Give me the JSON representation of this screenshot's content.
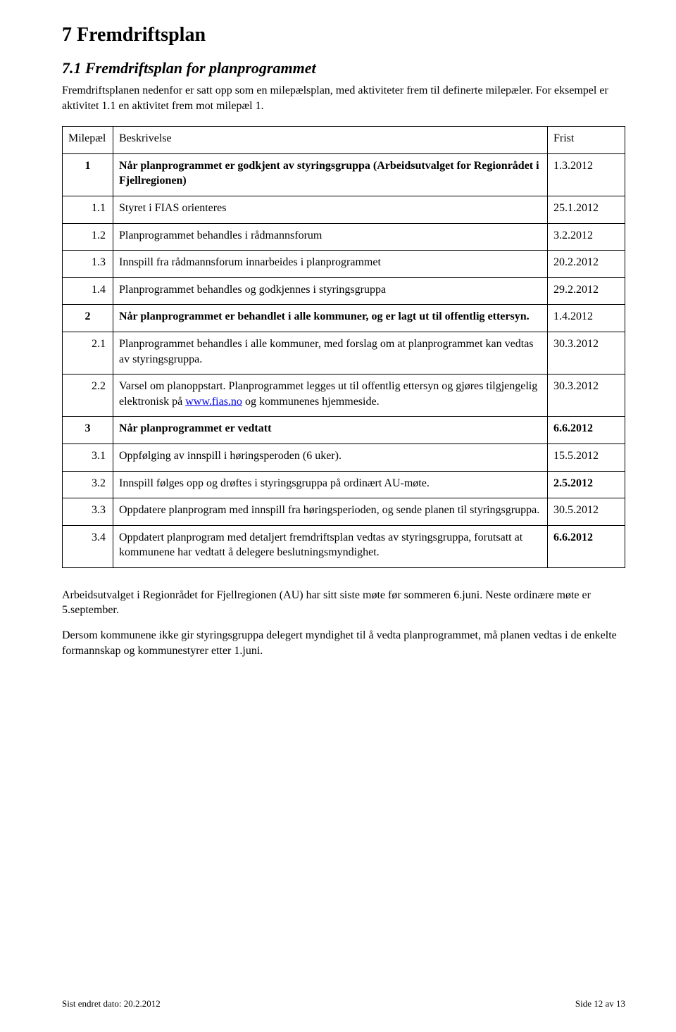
{
  "heading1": "7 Fremdriftsplan",
  "heading2": "7.1 Fremdriftsplan for planprogrammet",
  "intro": "Fremdriftsplanen nedenfor er satt opp som en milepælsplan, med aktiviteter frem til definerte milepæler. For eksempel er aktivitet 1.1 en aktivitet frem mot milepæl 1.",
  "table": {
    "head": {
      "c1": "Milepæl",
      "c2": "Beskrivelse",
      "c3": "Frist"
    },
    "rows": [
      {
        "id": "1",
        "idAlign": "center",
        "text": "Når planprogrammet er godkjent av styringsgruppa (Arbeidsutvalget for Regionrådet i Fjellregionen)",
        "bold": true,
        "date": "1.3.2012"
      },
      {
        "id": "1.1",
        "idAlign": "right",
        "text": "Styret i FIAS orienteres",
        "date": "25.1.2012"
      },
      {
        "id": "1.2",
        "idAlign": "right",
        "text": "Planprogrammet behandles i rådmannsforum",
        "date": "3.2.2012"
      },
      {
        "id": "1.3",
        "idAlign": "right",
        "text": "Innspill fra rådmannsforum innarbeides i planprogrammet",
        "date": "20.2.2012"
      },
      {
        "id": "1.4",
        "idAlign": "right",
        "text": "Planprogrammet behandles og godkjennes i styringsgruppa",
        "date": "29.2.2012"
      },
      {
        "id": "2",
        "idAlign": "center",
        "text": "Når planprogrammet er behandlet i alle kommuner, og er lagt ut til offentlig ettersyn.",
        "bold": true,
        "date": "1.4.2012"
      },
      {
        "id": "2.1",
        "idAlign": "right",
        "text": "Planprogrammet behandles i alle kommuner, med forslag om at planprogrammet kan vedtas av styringsgruppa.",
        "date": "30.3.2012"
      },
      {
        "id": "2.2",
        "idAlign": "right",
        "pre": "Varsel om planoppstart. Planprogrammet legges ut til offentlig ettersyn og gjøres tilgjengelig elektronisk på ",
        "link": "www.fias.no",
        "post": " og kommunenes hjemmeside.",
        "date": "30.3.2012"
      },
      {
        "id": "3",
        "idAlign": "center",
        "text": "Når planprogrammet er vedtatt",
        "bold": true,
        "date": "6.6.2012",
        "boldDate": true
      },
      {
        "id": "3.1",
        "idAlign": "right",
        "text": "Oppfølging av innspill i høringsperoden (6 uker).",
        "date": "15.5.2012"
      },
      {
        "id": "3.2",
        "idAlign": "right",
        "text": "Innspill følges opp og drøftes i styringsgruppa på ordinært AU-møte.",
        "date": "2.5.2012",
        "boldDate": true
      },
      {
        "id": "3.3",
        "idAlign": "right",
        "text": "Oppdatere planprogram med innspill fra høringsperioden, og sende planen til styringsgruppa.",
        "date": "30.5.2012"
      },
      {
        "id": "3.4",
        "idAlign": "right",
        "text": "Oppdatert planprogram med detaljert fremdriftsplan vedtas av styringsgruppa, forutsatt at kommunene har vedtatt å delegere beslutningsmyndighet.",
        "date": "6.6.2012",
        "boldDate": true
      }
    ]
  },
  "par1": "Arbeidsutvalget i Regionrådet for Fjellregionen (AU) har sitt siste møte før sommeren 6.juni. Neste ordinære møte er 5.september.",
  "par2": "Dersom kommunene ikke gir styringsgruppa delegert myndighet til å vedta planprogrammet, må planen vedtas i de enkelte formannskap og kommunestyrer etter 1.juni.",
  "footer": {
    "left": "Sist endret dato: 20.2.2012",
    "right": "Side 12 av 13"
  }
}
